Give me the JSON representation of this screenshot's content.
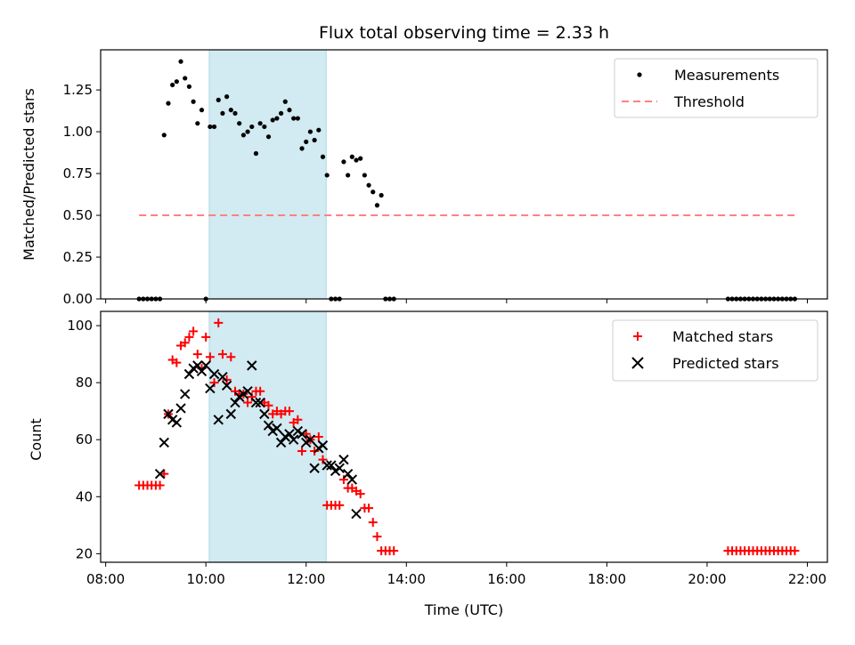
{
  "colors": {
    "measurement": "#000000",
    "threshold": "#ff8080",
    "matched": "#ff0000",
    "predicted": "#000000",
    "shade": "#add8e6"
  },
  "chart_data": [
    {
      "type": "scatter",
      "title": "Flux total observing time = 2.33 h",
      "xlabel": "",
      "ylabel": "Matched/Predicted stars",
      "xlim": [
        "07:54",
        "22:24"
      ],
      "ylim": [
        0,
        1.49
      ],
      "x_ticks": [
        "08:00",
        "10:00",
        "12:00",
        "14:00",
        "16:00",
        "18:00",
        "20:00",
        "22:00"
      ],
      "y_ticks": [
        "0.00",
        "0.25",
        "0.50",
        "0.75",
        "1.00",
        "1.25"
      ],
      "shaded_interval": [
        "10:04",
        "12:24"
      ],
      "legend": {
        "position": "upper right",
        "entries": [
          "Measurements",
          "Threshold"
        ]
      },
      "threshold": {
        "name": "Threshold",
        "y": 0.5,
        "x_range": [
          "08:40",
          "21:50"
        ]
      },
      "series": [
        {
          "name": "Measurements",
          "marker": "dot",
          "points": [
            [
              "08:40",
              0
            ],
            [
              "08:45",
              0
            ],
            [
              "08:50",
              0
            ],
            [
              "08:55",
              0
            ],
            [
              "09:00",
              0
            ],
            [
              "09:05",
              0
            ],
            [
              "09:10",
              0.98
            ],
            [
              "09:15",
              1.17
            ],
            [
              "09:20",
              1.28
            ],
            [
              "09:25",
              1.3
            ],
            [
              "09:30",
              1.42
            ],
            [
              "09:35",
              1.32
            ],
            [
              "09:40",
              1.27
            ],
            [
              "09:45",
              1.18
            ],
            [
              "09:50",
              1.05
            ],
            [
              "09:55",
              1.13
            ],
            [
              "10:00",
              0
            ],
            [
              "10:05",
              1.03
            ],
            [
              "10:10",
              1.03
            ],
            [
              "10:15",
              1.19
            ],
            [
              "10:20",
              1.11
            ],
            [
              "10:25",
              1.21
            ],
            [
              "10:30",
              1.13
            ],
            [
              "10:35",
              1.11
            ],
            [
              "10:40",
              1.05
            ],
            [
              "10:45",
              0.98
            ],
            [
              "10:50",
              1.0
            ],
            [
              "10:55",
              1.03
            ],
            [
              "11:00",
              0.87
            ],
            [
              "11:05",
              1.05
            ],
            [
              "11:10",
              1.03
            ],
            [
              "11:15",
              0.97
            ],
            [
              "11:20",
              1.07
            ],
            [
              "11:25",
              1.08
            ],
            [
              "11:30",
              1.11
            ],
            [
              "11:35",
              1.18
            ],
            [
              "11:40",
              1.13
            ],
            [
              "11:45",
              1.08
            ],
            [
              "11:50",
              1.08
            ],
            [
              "11:55",
              0.9
            ],
            [
              "12:00",
              0.94
            ],
            [
              "12:05",
              1.0
            ],
            [
              "12:10",
              0.95
            ],
            [
              "12:15",
              1.01
            ],
            [
              "12:20",
              0.85
            ],
            [
              "12:25",
              0.74
            ],
            [
              "12:30",
              0
            ],
            [
              "12:35",
              0
            ],
            [
              "12:40",
              0
            ],
            [
              "12:45",
              0.82
            ],
            [
              "12:50",
              0.74
            ],
            [
              "12:55",
              0.85
            ],
            [
              "13:00",
              0.83
            ],
            [
              "13:05",
              0.84
            ],
            [
              "13:10",
              0.74
            ],
            [
              "13:15",
              0.68
            ],
            [
              "13:20",
              0.64
            ],
            [
              "13:25",
              0.56
            ],
            [
              "13:30",
              0.62
            ],
            [
              "13:35",
              0
            ],
            [
              "13:40",
              0
            ],
            [
              "13:45",
              0
            ],
            [
              "20:25",
              0
            ],
            [
              "20:30",
              0
            ],
            [
              "20:35",
              0
            ],
            [
              "20:40",
              0
            ],
            [
              "20:45",
              0
            ],
            [
              "20:50",
              0
            ],
            [
              "20:55",
              0
            ],
            [
              "21:00",
              0
            ],
            [
              "21:05",
              0
            ],
            [
              "21:10",
              0
            ],
            [
              "21:15",
              0
            ],
            [
              "21:20",
              0
            ],
            [
              "21:25",
              0
            ],
            [
              "21:30",
              0
            ],
            [
              "21:35",
              0
            ],
            [
              "21:40",
              0
            ],
            [
              "21:45",
              0
            ]
          ]
        }
      ]
    },
    {
      "type": "scatter",
      "title": "",
      "xlabel": "Time (UTC)",
      "ylabel": "Count",
      "xlim": [
        "07:54",
        "22:24"
      ],
      "ylim": [
        17,
        105
      ],
      "x_ticks": [
        "08:00",
        "10:00",
        "12:00",
        "14:00",
        "16:00",
        "18:00",
        "20:00",
        "22:00"
      ],
      "y_ticks": [
        "20",
        "40",
        "60",
        "80",
        "100"
      ],
      "shaded_interval": [
        "10:04",
        "12:24"
      ],
      "legend": {
        "position": "upper right",
        "entries": [
          "Matched stars",
          "Predicted stars"
        ]
      },
      "series": [
        {
          "name": "Matched stars",
          "marker": "plus",
          "points": [
            [
              "08:40",
              44
            ],
            [
              "08:45",
              44
            ],
            [
              "08:50",
              44
            ],
            [
              "08:55",
              44
            ],
            [
              "09:00",
              44
            ],
            [
              "09:05",
              44
            ],
            [
              "09:10",
              48
            ],
            [
              "09:15",
              69
            ],
            [
              "09:20",
              88
            ],
            [
              "09:25",
              87
            ],
            [
              "09:30",
              93
            ],
            [
              "09:35",
              94
            ],
            [
              "09:40",
              96
            ],
            [
              "09:45",
              98
            ],
            [
              "09:50",
              90
            ],
            [
              "09:55",
              85
            ],
            [
              "10:00",
              96
            ],
            [
              "10:05",
              89
            ],
            [
              "10:10",
              80
            ],
            [
              "10:15",
              101
            ],
            [
              "10:20",
              90
            ],
            [
              "10:25",
              81
            ],
            [
              "10:30",
              89
            ],
            [
              "10:35",
              77
            ],
            [
              "10:40",
              76
            ],
            [
              "10:45",
              76
            ],
            [
              "10:50",
              73
            ],
            [
              "10:55",
              75
            ],
            [
              "11:00",
              77
            ],
            [
              "11:05",
              77
            ],
            [
              "11:10",
              73
            ],
            [
              "11:15",
              72
            ],
            [
              "11:20",
              69
            ],
            [
              "11:25",
              70
            ],
            [
              "11:30",
              69
            ],
            [
              "11:35",
              70
            ],
            [
              "11:40",
              70
            ],
            [
              "11:45",
              66
            ],
            [
              "11:50",
              67
            ],
            [
              "11:55",
              56
            ],
            [
              "12:00",
              62
            ],
            [
              "12:05",
              60
            ],
            [
              "12:10",
              56
            ],
            [
              "12:15",
              61
            ],
            [
              "12:20",
              53
            ],
            [
              "12:25",
              37
            ],
            [
              "12:30",
              37
            ],
            [
              "12:35",
              37
            ],
            [
              "12:40",
              37
            ],
            [
              "12:45",
              46
            ],
            [
              "12:50",
              43
            ],
            [
              "12:55",
              43
            ],
            [
              "13:00",
              42
            ],
            [
              "13:05",
              41
            ],
            [
              "13:10",
              36
            ],
            [
              "13:15",
              36
            ],
            [
              "13:20",
              31
            ],
            [
              "13:25",
              26
            ],
            [
              "13:30",
              21
            ],
            [
              "13:35",
              21
            ],
            [
              "13:40",
              21
            ],
            [
              "13:45",
              21
            ],
            [
              "20:25",
              21
            ],
            [
              "20:30",
              21
            ],
            [
              "20:35",
              21
            ],
            [
              "20:40",
              21
            ],
            [
              "20:45",
              21
            ],
            [
              "20:50",
              21
            ],
            [
              "20:55",
              21
            ],
            [
              "21:00",
              21
            ],
            [
              "21:05",
              21
            ],
            [
              "21:10",
              21
            ],
            [
              "21:15",
              21
            ],
            [
              "21:20",
              21
            ],
            [
              "21:25",
              21
            ],
            [
              "21:30",
              21
            ],
            [
              "21:35",
              21
            ],
            [
              "21:40",
              21
            ],
            [
              "21:45",
              21
            ]
          ]
        },
        {
          "name": "Predicted stars",
          "marker": "x",
          "points": [
            [
              "09:05",
              48
            ],
            [
              "09:10",
              59
            ],
            [
              "09:15",
              69
            ],
            [
              "09:20",
              67
            ],
            [
              "09:25",
              66
            ],
            [
              "09:30",
              71
            ],
            [
              "09:35",
              76
            ],
            [
              "09:40",
              83
            ],
            [
              "09:45",
              85
            ],
            [
              "09:50",
              86
            ],
            [
              "09:55",
              84
            ],
            [
              "10:00",
              86
            ],
            [
              "10:05",
              78
            ],
            [
              "10:10",
              83
            ],
            [
              "10:15",
              67
            ],
            [
              "10:20",
              82
            ],
            [
              "10:25",
              79
            ],
            [
              "10:30",
              69
            ],
            [
              "10:35",
              73
            ],
            [
              "10:40",
              75
            ],
            [
              "10:45",
              76
            ],
            [
              "10:50",
              77
            ],
            [
              "10:55",
              86
            ],
            [
              "11:00",
              73
            ],
            [
              "11:05",
              73
            ],
            [
              "11:10",
              69
            ],
            [
              "11:15",
              65
            ],
            [
              "11:20",
              63
            ],
            [
              "11:25",
              64
            ],
            [
              "11:30",
              59
            ],
            [
              "11:35",
              61
            ],
            [
              "11:40",
              62
            ],
            [
              "11:45",
              60
            ],
            [
              "11:50",
              63
            ],
            [
              "11:55",
              62
            ],
            [
              "12:00",
              59
            ],
            [
              "12:05",
              60
            ],
            [
              "12:10",
              50
            ],
            [
              "12:15",
              57
            ],
            [
              "12:20",
              58
            ],
            [
              "12:25",
              51
            ],
            [
              "12:30",
              51
            ],
            [
              "12:35",
              49
            ],
            [
              "12:40",
              50
            ],
            [
              "12:45",
              53
            ],
            [
              "12:50",
              48
            ],
            [
              "12:55",
              46
            ],
            [
              "13:00",
              34
            ]
          ]
        }
      ]
    }
  ]
}
